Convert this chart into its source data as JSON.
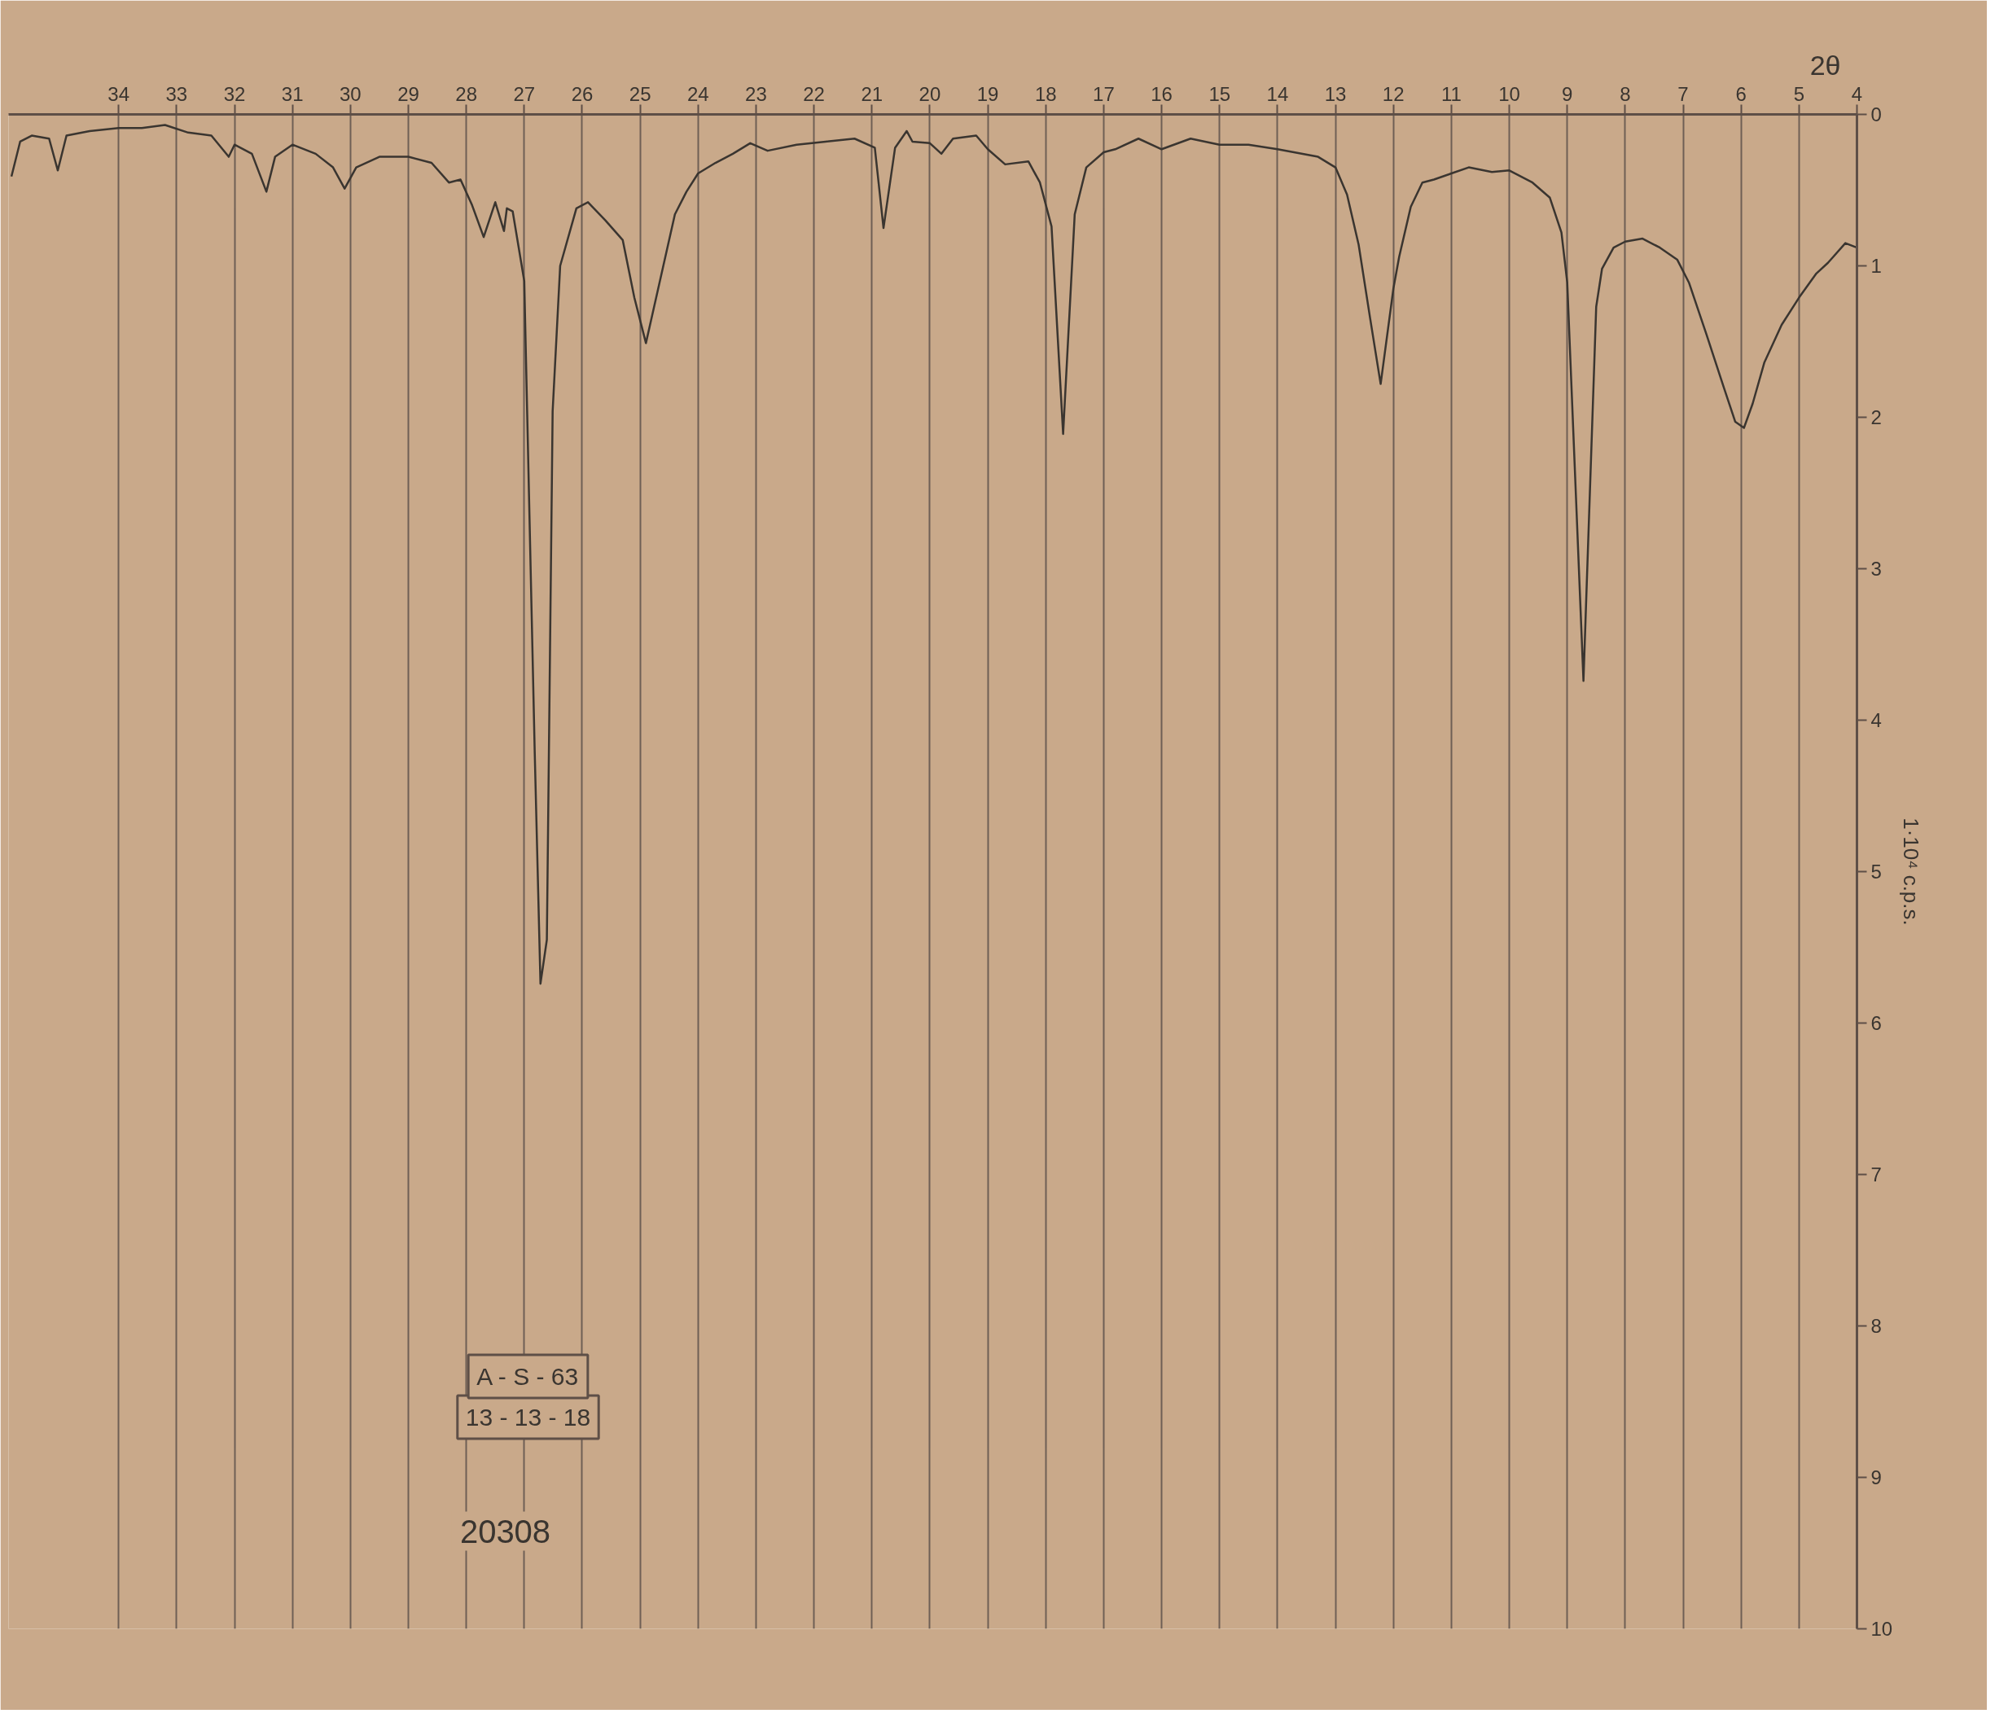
{
  "chart_data": {
    "type": "line",
    "xlabel": "2θ",
    "ylabel": "1·10⁴ c.p.s.",
    "annotations": [
      "20308",
      "13 - 13 - 18",
      "A - S - 63"
    ],
    "xlim": [
      35.9,
      4
    ],
    "ylim": [
      10,
      0
    ],
    "xticks": [
      4,
      5,
      6,
      7,
      8,
      9,
      10,
      11,
      12,
      13,
      14,
      15,
      16,
      17,
      18,
      19,
      20,
      21,
      22,
      23,
      24,
      25,
      26,
      27,
      28,
      29,
      30,
      31,
      32,
      33,
      34
    ],
    "yticks": [
      0,
      1,
      2,
      3,
      4,
      5,
      6,
      7,
      8,
      9,
      10
    ],
    "grid": "x",
    "series": [
      {
        "color": "#3a3530",
        "x": [
          4.0,
          4.2,
          4.5,
          4.7,
          5.0,
          5.3,
          5.6,
          5.8,
          5.95,
          6.1,
          6.3,
          6.6,
          6.9,
          7.1,
          7.4,
          7.7,
          8.0,
          8.2,
          8.4,
          8.5,
          8.72,
          9.0,
          9.1,
          9.3,
          9.6,
          10.0,
          10.3,
          10.7,
          11.0,
          11.3,
          11.5,
          11.7,
          11.9,
          12.0,
          12.22,
          12.4,
          12.6,
          12.8,
          13.0,
          13.3,
          14.0,
          14.5,
          15.0,
          15.5,
          16.0,
          16.4,
          16.8,
          17.0,
          17.3,
          17.5,
          17.7,
          17.9,
          18.1,
          18.3,
          18.7,
          19.0,
          19.2,
          19.6,
          19.8,
          20.0,
          20.3,
          20.4,
          20.6,
          20.8,
          20.95,
          21.3,
          21.8,
          22.3,
          22.8,
          23.1,
          23.4,
          23.7,
          24.0,
          24.2,
          24.4,
          24.6,
          24.8,
          24.9,
          25.1,
          25.3,
          25.6,
          25.9,
          26.1,
          26.38,
          26.51,
          26.61,
          26.72,
          26.82,
          27.0,
          27.1,
          27.2,
          27.3,
          27.35,
          27.5,
          27.7,
          27.9,
          28.1,
          28.3,
          28.6,
          29.0,
          29.5,
          29.9,
          30.1,
          30.3,
          30.6,
          31.0,
          31.3,
          31.45,
          31.7,
          32.0,
          32.1,
          32.4,
          32.8,
          33.2,
          33.6,
          34.0,
          34.5,
          34.9,
          35.05,
          35.2,
          35.5,
          35.7,
          35.85
        ],
        "values": [
          0.88,
          0.85,
          0.98,
          1.05,
          1.21,
          1.39,
          1.64,
          1.91,
          2.07,
          2.03,
          1.8,
          1.45,
          1.11,
          0.96,
          0.88,
          0.82,
          0.84,
          0.88,
          1.02,
          1.27,
          3.74,
          1.11,
          0.78,
          0.55,
          0.45,
          0.37,
          0.38,
          0.35,
          0.39,
          0.43,
          0.45,
          0.61,
          0.94,
          1.15,
          1.78,
          1.35,
          0.86,
          0.53,
          0.35,
          0.28,
          0.23,
          0.2,
          0.2,
          0.16,
          0.23,
          0.16,
          0.23,
          0.25,
          0.35,
          0.66,
          2.11,
          0.74,
          0.45,
          0.31,
          0.33,
          0.23,
          0.14,
          0.16,
          0.26,
          0.19,
          0.18,
          0.11,
          0.22,
          0.75,
          0.22,
          0.16,
          0.18,
          0.2,
          0.24,
          0.19,
          0.26,
          0.32,
          0.39,
          0.51,
          0.66,
          1.0,
          1.34,
          1.51,
          1.21,
          0.83,
          0.7,
          0.58,
          0.62,
          1.0,
          1.96,
          5.45,
          5.74,
          4.2,
          1.1,
          0.87,
          0.64,
          0.62,
          0.77,
          0.58,
          0.81,
          0.6,
          0.43,
          0.45,
          0.32,
          0.28,
          0.28,
          0.35,
          0.49,
          0.35,
          0.26,
          0.2,
          0.28,
          0.51,
          0.26,
          0.2,
          0.28,
          0.14,
          0.12,
          0.07,
          0.09,
          0.09,
          0.11,
          0.14,
          0.37,
          0.16,
          0.14,
          0.18,
          0.41
        ]
      }
    ]
  }
}
